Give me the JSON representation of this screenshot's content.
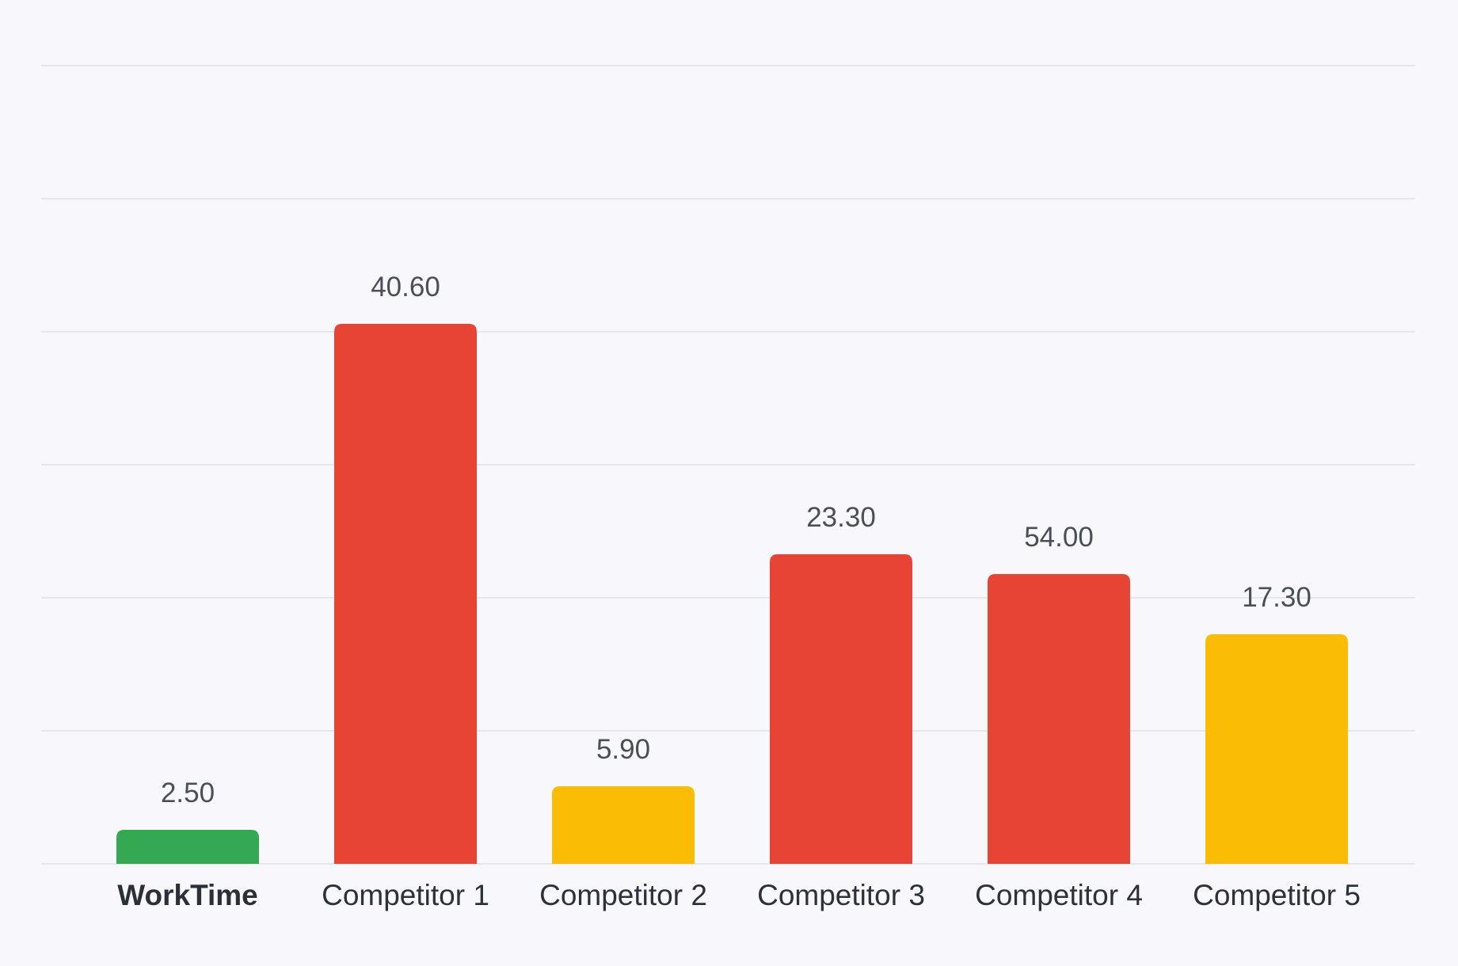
{
  "chart_data": {
    "type": "bar",
    "title": "",
    "xlabel": "",
    "ylabel": "",
    "grid": true,
    "legend": false,
    "highlight_category": "WorkTime",
    "categories": [
      "WorkTime",
      "Competitor 1",
      "Competitor 2",
      "Competitor 3",
      "Competitor 4",
      "Competitor 5"
    ],
    "values": [
      2.5,
      40.6,
      5.9,
      23.3,
      54.0,
      17.3
    ],
    "value_labels": [
      "2.50",
      "40.60",
      "5.90",
      "23.30",
      "54.00",
      "17.30"
    ],
    "bar_colors": [
      "#34a853",
      "#e84436",
      "#fbbc05",
      "#e84436",
      "#e84436",
      "#fbbc05"
    ]
  }
}
